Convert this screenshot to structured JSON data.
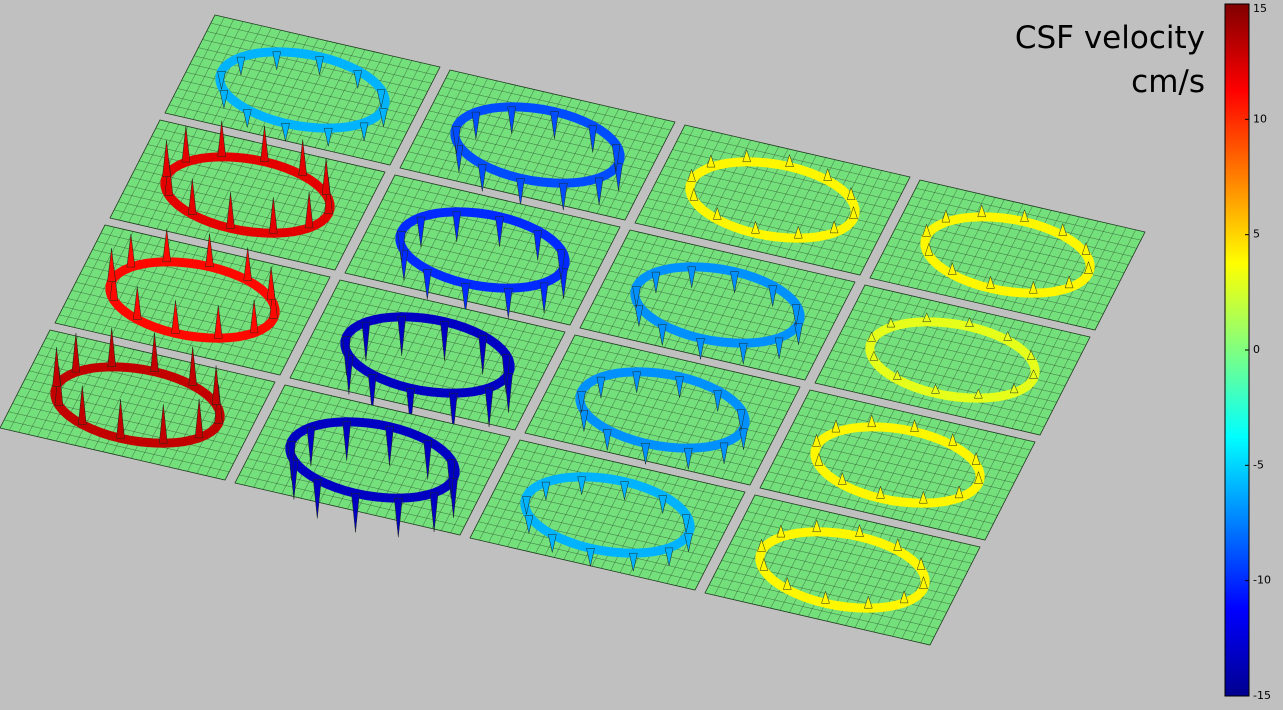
{
  "chart_data": {
    "type": "surface",
    "title": "CSF  velocity",
    "colorbar_label": "cm/s",
    "colormap": "jet",
    "zlim": [
      -15,
      15
    ],
    "zticks": [
      15,
      10,
      5,
      0,
      -5,
      -10,
      -15
    ],
    "base_color": "#74e07c",
    "values": [
      [
        -6,
        -9,
        4,
        4
      ],
      [
        12,
        -10,
        -7,
        3
      ],
      [
        11,
        -13,
        -7,
        4
      ],
      [
        13,
        -13,
        -6,
        4
      ]
    ]
  }
}
